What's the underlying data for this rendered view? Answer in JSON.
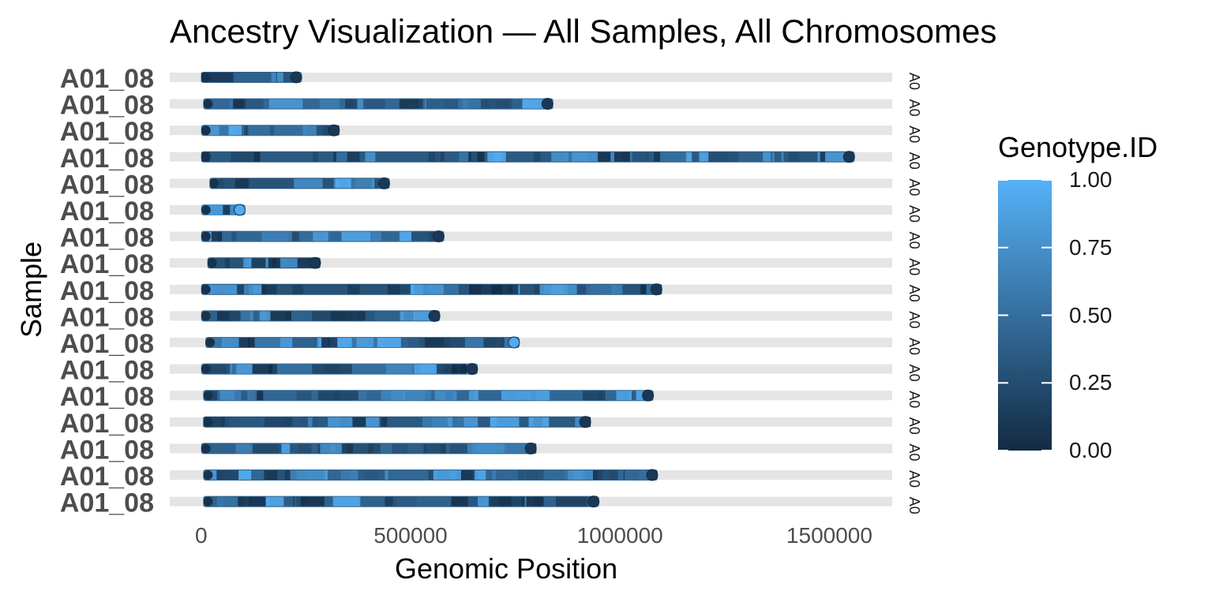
{
  "chart_data": {
    "type": "bar",
    "title": "Ancestry Visualization — All Samples, All Chromosomes",
    "xlabel": "Genomic Position",
    "ylabel": "Sample",
    "xlim": [
      -75000,
      1650000
    ],
    "xticks": [
      "0",
      "500000",
      "1000000",
      "1500000"
    ],
    "xtick_values": [
      0,
      500000,
      1000000,
      1500000
    ],
    "grid": false,
    "legend_position": "right",
    "color_scale": {
      "title": "Genotype.ID",
      "low_color": "#132B43",
      "high_color": "#56B1F7",
      "ticks": [
        "0.00",
        "0.25",
        "0.50",
        "0.75",
        "1.00"
      ],
      "tick_values": [
        0,
        0.25,
        0.5,
        0.75,
        1
      ]
    },
    "track_color": "#e5e5e5",
    "rows": [
      {
        "sample": "A01_08",
        "start": 0,
        "end": 240000,
        "mean_genotype": 0.4
      },
      {
        "sample": "A01_08",
        "start": 5000,
        "end": 840000,
        "mean_genotype": 0.45
      },
      {
        "sample": "A01_08",
        "start": 0,
        "end": 330000,
        "mean_genotype": 0.5
      },
      {
        "sample": "A01_08",
        "start": 0,
        "end": 1560000,
        "mean_genotype": 0.35
      },
      {
        "sample": "A01_08",
        "start": 20000,
        "end": 450000,
        "mean_genotype": 0.3
      },
      {
        "sample": "A01_08",
        "start": 0,
        "end": 105000,
        "mean_genotype": 0.8
      },
      {
        "sample": "A01_08",
        "start": 0,
        "end": 580000,
        "mean_genotype": 0.45
      },
      {
        "sample": "A01_08",
        "start": 15000,
        "end": 285000,
        "mean_genotype": 0.3
      },
      {
        "sample": "A01_08",
        "start": 0,
        "end": 1100000,
        "mean_genotype": 0.3
      },
      {
        "sample": "A01_08",
        "start": 0,
        "end": 570000,
        "mean_genotype": 0.4
      },
      {
        "sample": "A01_08",
        "start": 10000,
        "end": 760000,
        "mean_genotype": 0.55
      },
      {
        "sample": "A01_08",
        "start": 0,
        "end": 660000,
        "mean_genotype": 0.5
      },
      {
        "sample": "A01_08",
        "start": 5000,
        "end": 1080000,
        "mean_genotype": 0.45
      },
      {
        "sample": "A01_08",
        "start": 5000,
        "end": 930000,
        "mean_genotype": 0.35
      },
      {
        "sample": "A01_08",
        "start": 0,
        "end": 800000,
        "mean_genotype": 0.4
      },
      {
        "sample": "A01_08",
        "start": 5000,
        "end": 1090000,
        "mean_genotype": 0.45
      },
      {
        "sample": "A01_08",
        "start": 5000,
        "end": 950000,
        "mean_genotype": 0.4
      }
    ]
  }
}
